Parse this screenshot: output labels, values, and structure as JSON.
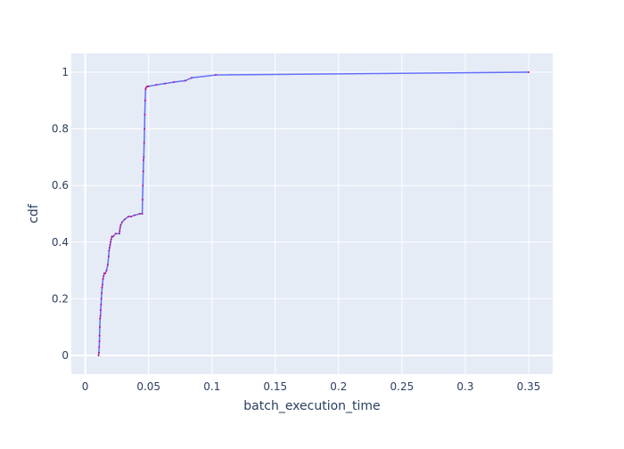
{
  "chart_data": {
    "type": "line",
    "xlabel": "batch_execution_time",
    "ylabel": "cdf",
    "xlim": [
      -0.011,
      0.369
    ],
    "ylim": [
      -0.066,
      1.066
    ],
    "x_ticks": [
      0,
      0.05,
      0.1,
      0.15,
      0.2,
      0.25,
      0.3,
      0.35
    ],
    "x_tick_labels": [
      "0",
      "0.05",
      "0.1",
      "0.15",
      "0.2",
      "0.25",
      "0.3",
      "0.35"
    ],
    "y_ticks": [
      0,
      0.2,
      0.4,
      0.6,
      0.8,
      1
    ],
    "y_tick_labels": [
      "0",
      "0.2",
      "0.4",
      "0.6",
      "0.8",
      "1"
    ],
    "grid": true,
    "colors": {
      "plot_bg": "#e5ecf6",
      "grid": "#ffffff",
      "line": "#636efa",
      "marker": "#c0117a",
      "text": "#2a3f5f"
    },
    "series": [
      {
        "x": [
          0.0105,
          0.0108,
          0.011,
          0.0112,
          0.0113,
          0.0115,
          0.0117,
          0.012,
          0.0122,
          0.0125,
          0.0127,
          0.013,
          0.0133,
          0.0136,
          0.014,
          0.0145,
          0.015,
          0.0158,
          0.0168,
          0.0178,
          0.0185,
          0.0188,
          0.0192,
          0.0196,
          0.02,
          0.0205,
          0.021,
          0.022,
          0.024,
          0.027,
          0.0272,
          0.0275,
          0.028,
          0.029,
          0.031,
          0.034,
          0.036,
          0.039,
          0.043,
          0.045,
          0.0452,
          0.0455,
          0.0458,
          0.046,
          0.0462,
          0.0465,
          0.0468,
          0.047,
          0.0473,
          0.0476,
          0.048,
          0.049,
          0.05,
          0.056,
          0.063,
          0.07,
          0.079,
          0.084,
          0.103,
          0.35
        ],
        "y": [
          0.0,
          0.01,
          0.03,
          0.05,
          0.07,
          0.1,
          0.13,
          0.14,
          0.16,
          0.18,
          0.2,
          0.22,
          0.24,
          0.25,
          0.27,
          0.28,
          0.29,
          0.29,
          0.3,
          0.32,
          0.35,
          0.37,
          0.38,
          0.39,
          0.4,
          0.41,
          0.42,
          0.42,
          0.43,
          0.43,
          0.44,
          0.45,
          0.46,
          0.47,
          0.48,
          0.49,
          0.49,
          0.495,
          0.5,
          0.5,
          0.55,
          0.6,
          0.65,
          0.69,
          0.7,
          0.75,
          0.8,
          0.85,
          0.9,
          0.94,
          0.945,
          0.95,
          0.95,
          0.955,
          0.96,
          0.965,
          0.97,
          0.98,
          0.99,
          1.0
        ]
      }
    ]
  }
}
